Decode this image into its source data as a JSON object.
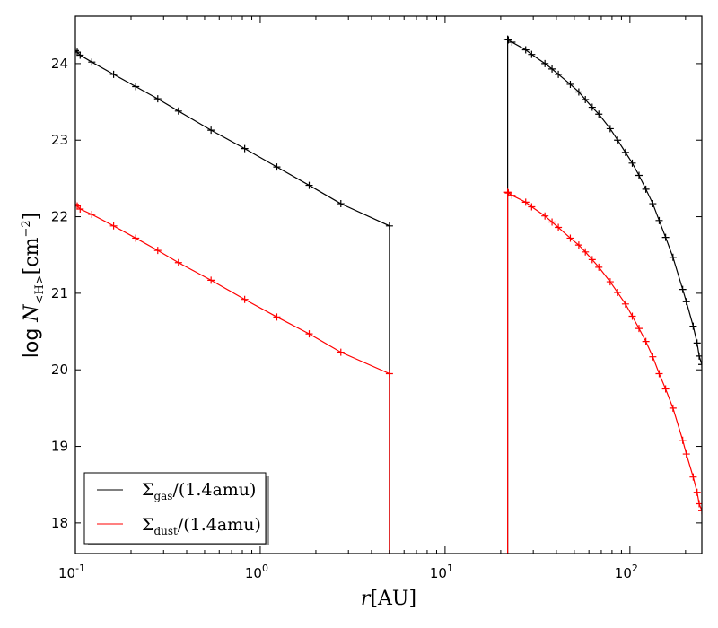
{
  "chart_data": {
    "type": "line",
    "xlabel": {
      "italic": "r",
      "rest": "[AU]"
    },
    "ylabel": {
      "prefix": "log ",
      "italic": "N",
      "sub": "<H>",
      "rest": "[cm",
      "sup": "−2",
      "close": "]"
    },
    "xscale": "log",
    "xlim": [
      0.1,
      245
    ],
    "ylim": [
      17.6,
      24.62
    ],
    "x_ticks": [
      {
        "base": "10",
        "exp": "-1",
        "value": 0.1
      },
      {
        "base": "10",
        "exp": "0",
        "value": 1
      },
      {
        "base": "10",
        "exp": "1",
        "value": 10
      },
      {
        "base": "10",
        "exp": "2",
        "value": 100
      }
    ],
    "y_ticks": [
      18,
      19,
      20,
      21,
      22,
      23,
      24
    ],
    "grid": false,
    "legend_position": "lower-left",
    "series": [
      {
        "name": {
          "symbol": "Σ",
          "sub": "gas",
          "rest": "/(1.4amu)"
        },
        "color": "#000000",
        "segments": [
          {
            "x": [
              0.1,
              0.1023,
              0.1061,
              0.1227,
              0.161,
              0.212,
              0.279,
              0.361,
              0.542,
              0.824,
              1.23,
              1.84,
              2.73,
              5.0
            ],
            "y": [
              24.17,
              24.15,
              24.11,
              24.02,
              23.86,
              23.7,
              23.54,
              23.38,
              23.13,
              22.89,
              22.65,
              22.41,
              22.17,
              21.88
            ],
            "drop_at": "end"
          },
          {
            "x": [
              21.8,
              22.0,
              23.0,
              27.3,
              29.4,
              34.7,
              37.9,
              41.0,
              47.6,
              52.9,
              57.4,
              62.5,
              67.9,
              78.2,
              85.8,
              94.6,
              103,
              112,
              122,
              133,
              144,
              156,
              171,
              193,
              202,
              220,
              231,
              237,
              245
            ],
            "y": [
              24.32,
              24.31,
              24.28,
              24.18,
              24.12,
              24.0,
              23.93,
              23.86,
              23.73,
              23.63,
              23.53,
              23.43,
              23.34,
              23.15,
              23.0,
              22.84,
              22.7,
              22.54,
              22.36,
              22.17,
              21.95,
              21.73,
              21.47,
              21.05,
              20.89,
              20.57,
              20.35,
              20.18,
              20.07
            ],
            "drop_at": "start"
          }
        ]
      },
      {
        "name": {
          "symbol": "Σ",
          "sub": "dust",
          "rest": "/(1.4amu)"
        },
        "color": "#ff0000",
        "segments": [
          {
            "x": [
              0.1,
              0.1023,
              0.1061,
              0.1227,
              0.161,
              0.212,
              0.279,
              0.361,
              0.542,
              0.824,
              1.23,
              1.84,
              2.73,
              5.0
            ],
            "y": [
              22.16,
              22.14,
              22.1,
              22.03,
              21.88,
              21.72,
              21.56,
              21.4,
              21.17,
              20.92,
              20.69,
              20.47,
              20.23,
              19.95
            ],
            "drop_at": "end"
          },
          {
            "x": [
              21.8,
              22.0,
              23.0,
              27.3,
              29.4,
              34.7,
              37.9,
              41.0,
              47.6,
              52.9,
              57.4,
              62.5,
              67.9,
              78.2,
              85.8,
              94.6,
              103,
              112,
              122,
              133,
              144,
              156,
              171,
              193,
              202,
              220,
              231,
              237,
              245
            ],
            "y": [
              22.32,
              22.31,
              22.28,
              22.19,
              22.13,
              22.01,
              21.93,
              21.86,
              21.72,
              21.63,
              21.54,
              21.44,
              21.34,
              21.15,
              21.01,
              20.86,
              20.7,
              20.54,
              20.37,
              20.17,
              19.95,
              19.75,
              19.5,
              19.08,
              18.9,
              18.6,
              18.4,
              18.25,
              18.16
            ],
            "drop_at": "start"
          }
        ]
      }
    ]
  }
}
